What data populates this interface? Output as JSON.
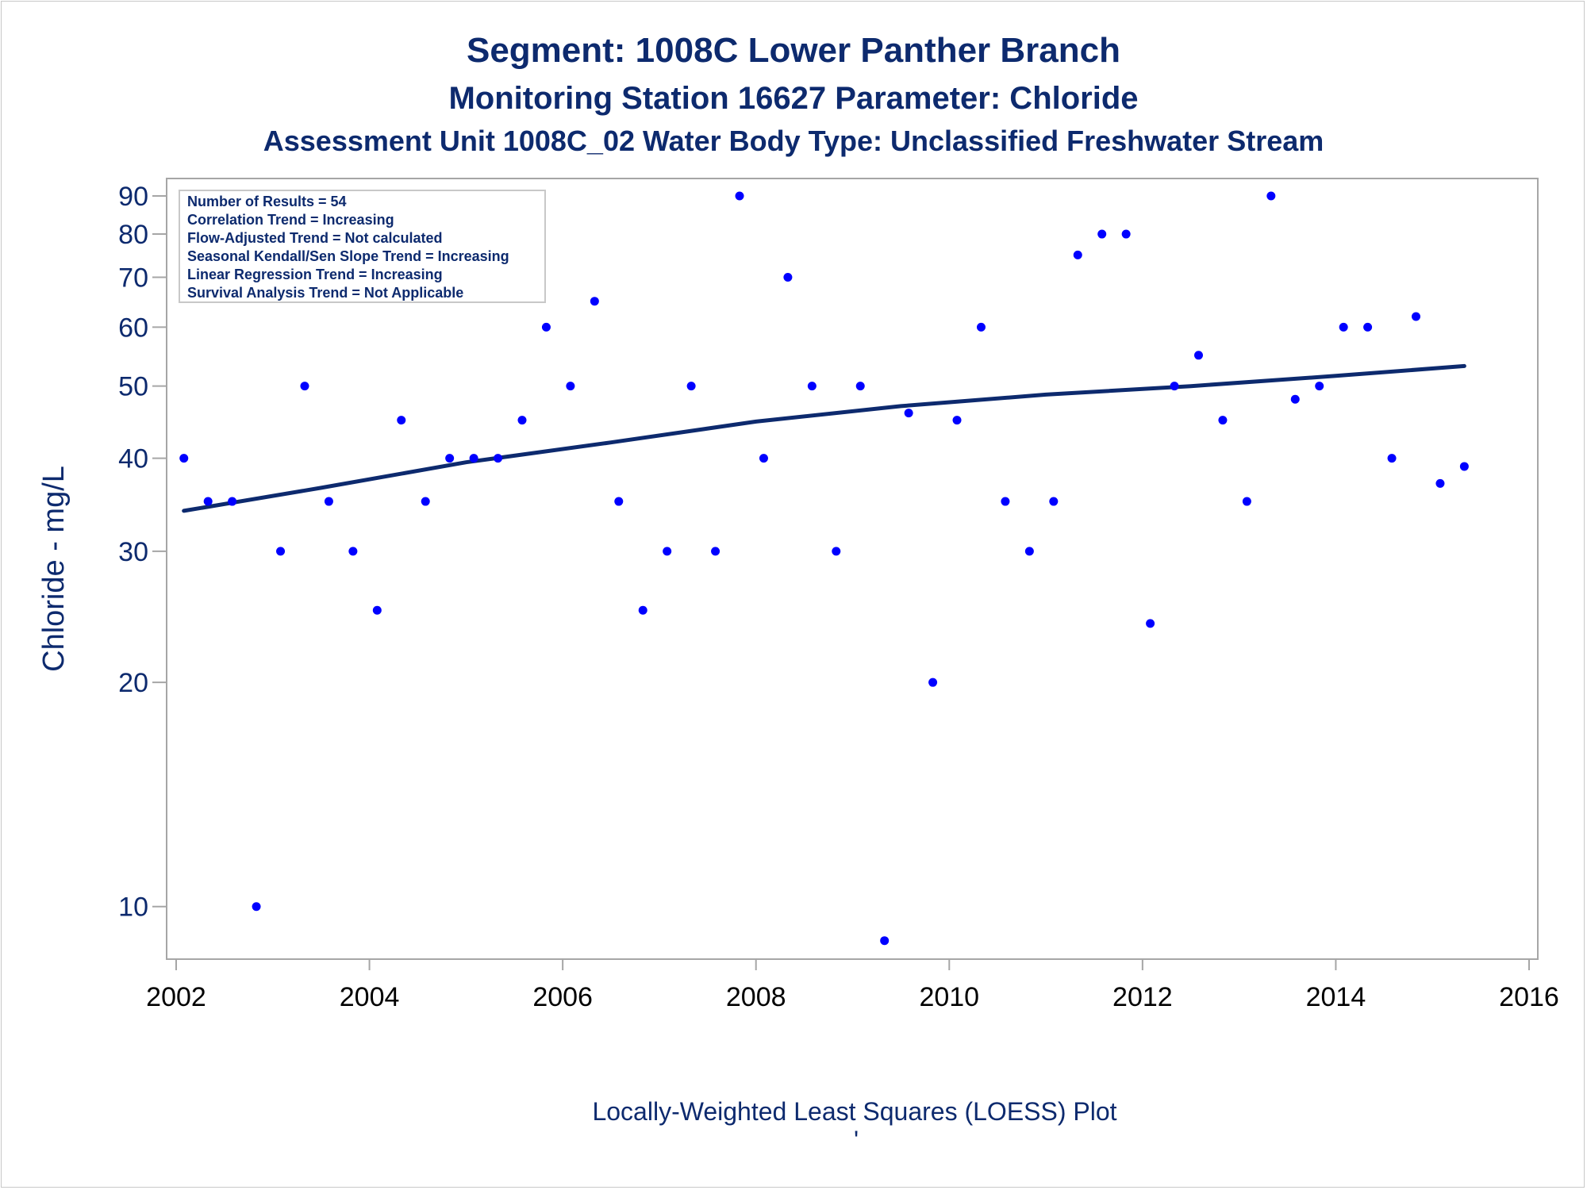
{
  "titles": {
    "line1": "Segment: 1008C  Lower Panther Branch",
    "line2": "Monitoring Station 16627 Parameter: Chloride",
    "line3": "Assessment Unit 1008C_02   Water Body Type: Unclassified Freshwater Stream"
  },
  "info_box": {
    "lines": [
      "Number of Results = 54",
      "Correlation Trend = Increasing",
      "Flow-Adjusted Trend = Not calculated",
      "Seasonal Kendall/Sen Slope Trend = Increasing",
      "Linear Regression Trend = Increasing",
      "Survival Analysis Trend = Not Applicable"
    ]
  },
  "footnote": {
    "text": "Locally-Weighted Least Squares (LOESS) Plot",
    "mark": "'"
  },
  "colors": {
    "title": "#0d2a6e",
    "points": "#0000ff",
    "trend_line": "#0d2a6e",
    "axis": "#a6a6a6"
  },
  "chart_data": {
    "type": "scatter",
    "ylabel": "Chloride - mg/L",
    "xlabel": "",
    "y_scale": "log",
    "xlim": [
      2002,
      2016
    ],
    "ylim": [
      8.5,
      95
    ],
    "x_ticks": [
      2002,
      2004,
      2006,
      2008,
      2010,
      2012,
      2014,
      2016
    ],
    "y_ticks": [
      10,
      20,
      30,
      40,
      50,
      60,
      70,
      80,
      90
    ],
    "series": [
      {
        "type": "scatter",
        "x": [
          2002.08,
          2002.33,
          2002.58,
          2002.83,
          2003.08,
          2003.33,
          2003.58,
          2003.83,
          2004.08,
          2004.33,
          2004.58,
          2004.83,
          2005.08,
          2005.33,
          2005.58,
          2005.83,
          2006.08,
          2006.33,
          2006.58,
          2006.83,
          2007.08,
          2007.33,
          2007.58,
          2007.83,
          2008.08,
          2008.33,
          2008.58,
          2008.83,
          2009.08,
          2009.33,
          2009.58,
          2009.83,
          2010.08,
          2010.33,
          2010.58,
          2010.83,
          2011.08,
          2011.33,
          2011.58,
          2011.83,
          2012.08,
          2012.33,
          2012.58,
          2012.83,
          2013.08,
          2013.33,
          2013.58,
          2013.83,
          2014.08,
          2014.33,
          2014.58,
          2014.83,
          2015.08,
          2015.33
        ],
        "y": [
          40,
          35,
          35,
          10,
          30,
          50,
          35,
          30,
          25,
          45,
          35,
          40,
          40,
          40,
          45,
          60,
          50,
          65,
          35,
          25,
          30,
          50,
          30,
          90,
          40,
          70,
          50,
          30,
          50,
          9,
          46,
          20,
          45,
          60,
          35,
          30,
          35,
          75,
          80,
          80,
          24,
          50,
          55,
          45,
          35,
          90,
          48,
          50,
          60,
          60,
          40,
          62,
          37,
          39
        ]
      },
      {
        "type": "line",
        "x": [
          2002.08,
          2003.5,
          2005,
          2006.5,
          2008,
          2009.5,
          2011,
          2012.5,
          2014,
          2015.33
        ],
        "y": [
          34,
          36.5,
          39.5,
          42,
          44.8,
          47,
          48.7,
          50,
          51.6,
          53.2
        ]
      }
    ]
  }
}
